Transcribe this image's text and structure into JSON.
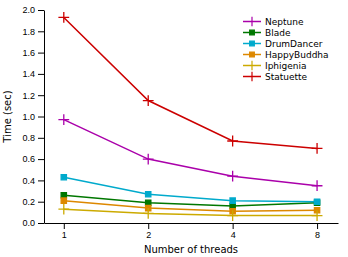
{
  "chart_data": {
    "type": "line",
    "x": [
      1,
      2,
      4,
      8
    ],
    "series": [
      {
        "name": "Neptune",
        "color": "#aa00aa",
        "marker": "plus",
        "values": [
          0.97,
          0.6,
          0.44,
          0.35
        ]
      },
      {
        "name": "Blade",
        "color": "#007700",
        "marker": "square",
        "values": [
          0.26,
          0.19,
          0.16,
          0.19
        ]
      },
      {
        "name": "DrumDancer",
        "color": "#00aacc",
        "marker": "square",
        "values": [
          0.43,
          0.27,
          0.21,
          0.2
        ]
      },
      {
        "name": "HappyBuddha",
        "color": "#dd8800",
        "marker": "square",
        "values": [
          0.21,
          0.14,
          0.11,
          0.12
        ]
      },
      {
        "name": "Iphigenia",
        "color": "#ccaa00",
        "marker": "plus",
        "values": [
          0.13,
          0.09,
          0.07,
          0.07
        ]
      },
      {
        "name": "Statuette",
        "color": "#cc0000",
        "marker": "plus",
        "values": [
          1.93,
          1.15,
          0.77,
          0.7
        ]
      }
    ],
    "xlabel": "Number of threads",
    "ylabel": "Time (sec)",
    "xlim": [
      0.85,
      9.5
    ],
    "ylim": [
      0.0,
      2.0
    ],
    "xticks": [
      1,
      2,
      4,
      8
    ],
    "yticks": [
      {
        "value": 0.0,
        "label": "0.0"
      },
      0.2,
      0.4,
      0.6,
      0.8,
      {
        "value": 1.0,
        "label": "1.0"
      },
      1.2,
      1.4,
      1.6,
      1.8,
      {
        "value": 2.0,
        "label": "2.0"
      }
    ],
    "log": "x",
    "grid": false,
    "legend": "upper right"
  }
}
